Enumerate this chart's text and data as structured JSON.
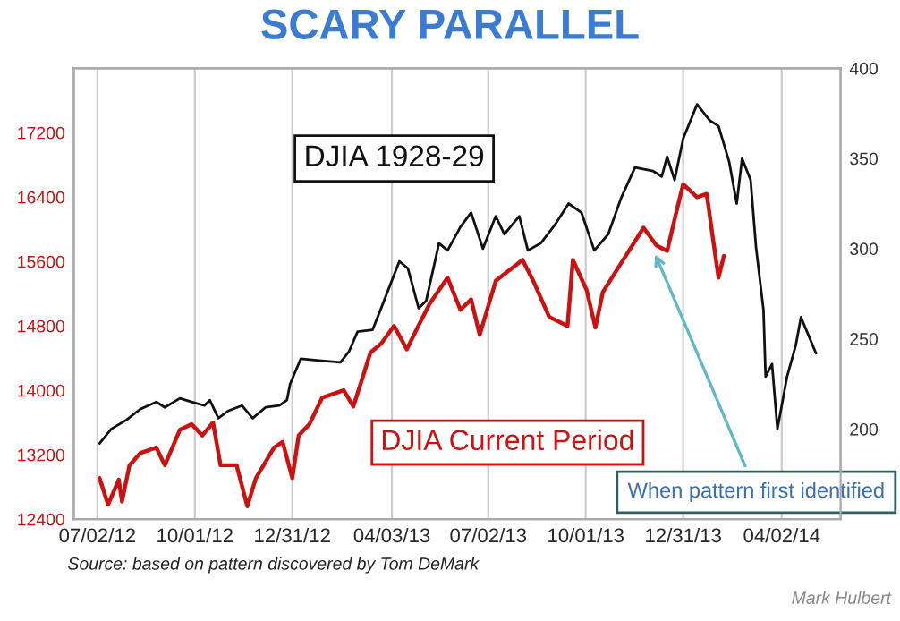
{
  "chart_data": {
    "type": "line",
    "title": "SCARY PARALLEL",
    "xlim": [
      "2012-06-10",
      "2014-05-27"
    ],
    "xticks": [
      {
        "value": "2012-07-02",
        "label": "07/02/12"
      },
      {
        "value": "2012-10-01",
        "label": "10/01/12"
      },
      {
        "value": "2012-12-31",
        "label": "12/31/12"
      },
      {
        "value": "2013-04-03",
        "label": "04/03/13"
      },
      {
        "value": "2013-07-02",
        "label": "07/02/13"
      },
      {
        "value": "2013-10-01",
        "label": "10/01/13"
      },
      {
        "value": "2013-12-31",
        "label": "12/31/13"
      },
      {
        "value": "2014-04-02",
        "label": "04/02/14"
      }
    ],
    "ylim": [
      12400,
      18000
    ],
    "yticks": [
      12400,
      13200,
      14000,
      14800,
      15600,
      16400,
      17200
    ],
    "y2lim": [
      150,
      400
    ],
    "y2ticks": [
      200,
      250,
      300,
      350,
      400
    ],
    "grid": "x",
    "legend": false,
    "marker": "none",
    "line_style": "solid",
    "series": [
      {
        "name": "DJIA 1928-29",
        "color": "#111111",
        "axis": "y2",
        "x": [
          "2012-07-04",
          "2012-07-15",
          "2012-07-29",
          "2012-08-11",
          "2012-08-26",
          "2012-09-03",
          "2012-09-17",
          "2012-09-28",
          "2012-10-10",
          "2012-10-15",
          "2012-10-23",
          "2012-11-01",
          "2012-11-14",
          "2012-11-24",
          "2012-12-06",
          "2012-12-19",
          "2012-12-26",
          "2012-12-29",
          "2013-01-08",
          "2013-01-25",
          "2013-02-14",
          "2013-02-22",
          "2013-03-02",
          "2013-03-16",
          "2013-03-24",
          "2013-04-10",
          "2013-04-18",
          "2013-04-28",
          "2013-05-05",
          "2013-05-17",
          "2013-05-25",
          "2013-06-06",
          "2013-06-16",
          "2013-06-27",
          "2013-07-09",
          "2013-07-17",
          "2013-07-31",
          "2013-08-08",
          "2013-08-20",
          "2013-09-02",
          "2013-09-15",
          "2013-09-27",
          "2013-10-09",
          "2013-10-22",
          "2013-11-03",
          "2013-11-16",
          "2013-12-03",
          "2013-12-11",
          "2013-12-16",
          "2013-12-23",
          "2013-12-31",
          "2014-01-13",
          "2014-01-25",
          "2014-02-02",
          "2014-02-12",
          "2014-02-19",
          "2014-02-24",
          "2014-03-04",
          "2014-03-09",
          "2014-03-16",
          "2014-03-18",
          "2014-03-24",
          "2014-03-29",
          "2014-04-07",
          "2014-04-15",
          "2014-04-20",
          "2014-04-27",
          "2014-05-04"
        ],
        "values": [
          192,
          200,
          205,
          211,
          215,
          212,
          217,
          215,
          213,
          216,
          206,
          210,
          213,
          206,
          212,
          213,
          216,
          225,
          239,
          238,
          237,
          243,
          254,
          255,
          267,
          293,
          289,
          267,
          271,
          303,
          299,
          312,
          320,
          300,
          318,
          308,
          318,
          299,
          303,
          313,
          325,
          320,
          299,
          308,
          328,
          345,
          343,
          340,
          351,
          338,
          361,
          380,
          371,
          368,
          348,
          325,
          350,
          338,
          301,
          266,
          229,
          236,
          200,
          229,
          246,
          262,
          252,
          242
        ]
      },
      {
        "name": "DJIA Current Period",
        "color": "#cc1111",
        "x": [
          "2012-07-04",
          "2012-07-12",
          "2012-07-22",
          "2012-07-25",
          "2012-08-01",
          "2012-08-11",
          "2012-08-26",
          "2012-09-03",
          "2012-09-17",
          "2012-09-28",
          "2012-10-08",
          "2012-10-18",
          "2012-10-25",
          "2012-11-09",
          "2012-11-19",
          "2012-11-27",
          "2012-12-14",
          "2012-12-22",
          "2012-12-31",
          "2013-01-06",
          "2013-01-16",
          "2013-01-28",
          "2013-02-17",
          "2013-02-26",
          "2013-03-06",
          "2013-03-14",
          "2013-03-24",
          "2013-04-05",
          "2013-04-17",
          "2013-04-27",
          "2013-05-08",
          "2013-05-25",
          "2013-06-06",
          "2013-06-16",
          "2013-06-24",
          "2013-07-09",
          "2013-08-03",
          "2013-08-13",
          "2013-08-28",
          "2013-09-14",
          "2013-09-19",
          "2013-10-02",
          "2013-10-10",
          "2013-10-17",
          "2013-11-03",
          "2013-11-24",
          "2013-12-06",
          "2013-12-16",
          "2013-12-24",
          "2013-12-31",
          "2014-01-13",
          "2014-01-22",
          "2014-01-27",
          "2014-02-02",
          "2014-02-07"
        ],
        "values": [
          12910,
          12580,
          12890,
          12620,
          13070,
          13220,
          13290,
          13070,
          13510,
          13580,
          13440,
          13600,
          13070,
          13070,
          12560,
          12910,
          13290,
          13360,
          12910,
          13440,
          13580,
          13910,
          14000,
          13800,
          14130,
          14470,
          14580,
          14800,
          14510,
          14780,
          15070,
          15400,
          15000,
          15130,
          14690,
          15360,
          15620,
          15360,
          14910,
          14800,
          15620,
          15240,
          14780,
          15220,
          15580,
          16020,
          15800,
          15730,
          16180,
          16560,
          16400,
          16440,
          15960,
          15400,
          15670
        ]
      }
    ],
    "annotations": [
      {
        "text": "When pattern first identified",
        "x": "2013-12-03",
        "y": 15750
      },
      "Source: based on pattern discovered by Tom DeMark",
      "Mark Hulbert"
    ]
  }
}
